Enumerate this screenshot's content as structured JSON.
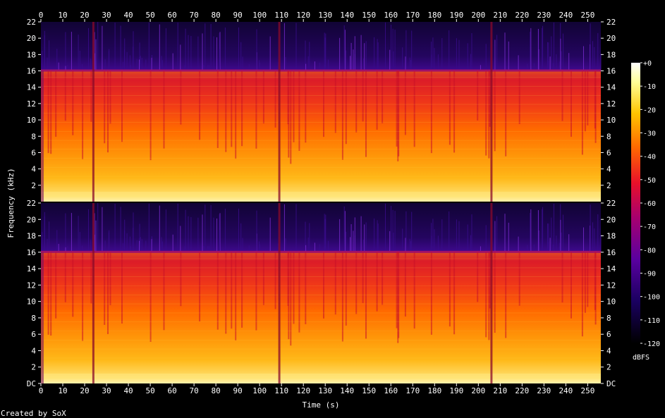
{
  "chart_data": {
    "type": "heatmap",
    "title": "",
    "xlabel": "Time (s)",
    "ylabel": "Frequency (kHz)",
    "xlim": [
      0,
      256
    ],
    "ylim": [
      0,
      22
    ],
    "x_ticks": [
      "0",
      "10",
      "20",
      "30",
      "40",
      "50",
      "60",
      "70",
      "80",
      "90",
      "100",
      "110",
      "120",
      "130",
      "140",
      "150",
      "160",
      "170",
      "180",
      "190",
      "200",
      "210",
      "220",
      "230",
      "240",
      "250"
    ],
    "y_ticks": [
      "DC",
      "2",
      "4",
      "6",
      "8",
      "10",
      "12",
      "14",
      "16",
      "18",
      "20",
      "22"
    ],
    "channels": 2,
    "cutoff_khz": 16,
    "colorbar": {
      "label": "dBFS",
      "ticks": [
        "+0",
        "-10",
        "-20",
        "-30",
        "-40",
        "-50",
        "-60",
        "-70",
        "-80",
        "-90",
        "-100",
        "-110",
        "-120"
      ],
      "range": [
        -120,
        0
      ],
      "colors": [
        "#000000",
        "#1a0060",
        "#5a00a0",
        "#a8006e",
        "#e8102a",
        "#ff6a00",
        "#ffc400",
        "#ffff96",
        "#ffffff"
      ]
    },
    "dropouts_s": [
      24,
      109,
      206
    ],
    "credit": "Created by SoX"
  }
}
